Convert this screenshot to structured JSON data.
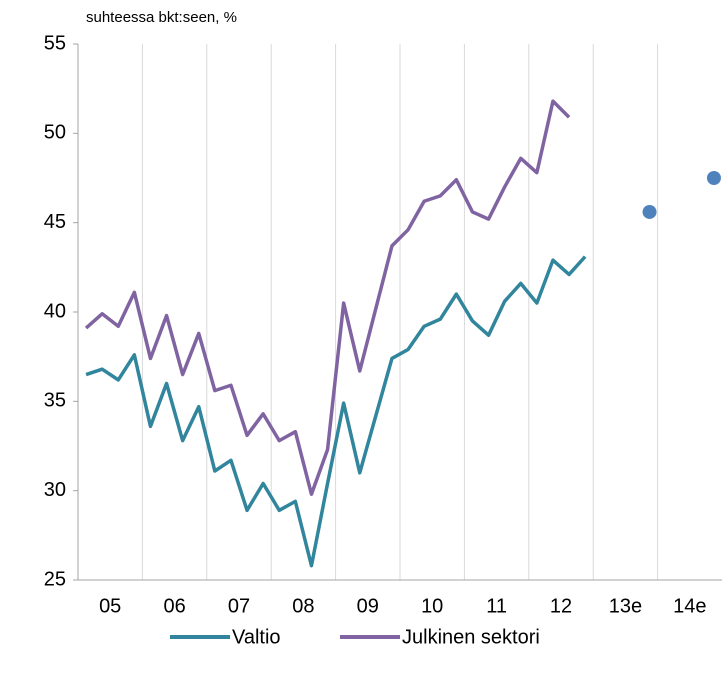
{
  "chart_data": {
    "type": "line",
    "title": "suhteessa bkt:seen, %",
    "categories": [
      null,
      "05",
      null,
      null,
      null,
      "06",
      null,
      null,
      null,
      "07",
      null,
      null,
      null,
      "08",
      null,
      null,
      null,
      "09",
      null,
      null,
      null,
      "10",
      null,
      null,
      null,
      "11",
      null,
      null,
      null,
      "12",
      null,
      null,
      null,
      "13e",
      null,
      null,
      null,
      "14e",
      null,
      null
    ],
    "series": [
      {
        "name": "Valtio",
        "color": "#31859c",
        "values": [
          36.5,
          36.8,
          36.2,
          37.6,
          33.6,
          36.0,
          32.8,
          34.7,
          31.1,
          31.7,
          28.9,
          30.4,
          28.9,
          29.4,
          25.8,
          30.4,
          34.9,
          31.0,
          34.2,
          37.4,
          37.9,
          39.2,
          39.6,
          41.0,
          39.5,
          38.7,
          40.6,
          41.6,
          40.5,
          42.9,
          42.1,
          43.1,
          null,
          null,
          null,
          null,
          null,
          null,
          null,
          null
        ]
      },
      {
        "name": "Julkinen sektori",
        "color": "#8064a2",
        "values": [
          39.1,
          39.9,
          39.2,
          41.1,
          37.4,
          39.8,
          36.5,
          38.8,
          35.6,
          35.9,
          33.1,
          34.3,
          32.8,
          33.3,
          29.8,
          32.3,
          40.5,
          36.7,
          40.2,
          43.7,
          44.6,
          46.2,
          46.5,
          47.4,
          45.6,
          45.2,
          47.0,
          48.6,
          47.8,
          51.8,
          50.9,
          null,
          null,
          null,
          null,
          null,
          null,
          null,
          null,
          null
        ]
      }
    ],
    "points": {
      "color": "#4f81bd",
      "values": [
        null,
        null,
        null,
        null,
        null,
        null,
        null,
        null,
        null,
        null,
        null,
        null,
        null,
        null,
        null,
        null,
        null,
        null,
        null,
        null,
        null,
        null,
        null,
        null,
        null,
        null,
        null,
        null,
        null,
        null,
        null,
        null,
        null,
        null,
        null,
        45.6,
        null,
        null,
        null,
        47.5
      ]
    },
    "ylim": [
      25,
      55
    ],
    "yticks": [
      25,
      30,
      35,
      40,
      45,
      50,
      55
    ],
    "grid": "x",
    "legend": "bottom"
  }
}
